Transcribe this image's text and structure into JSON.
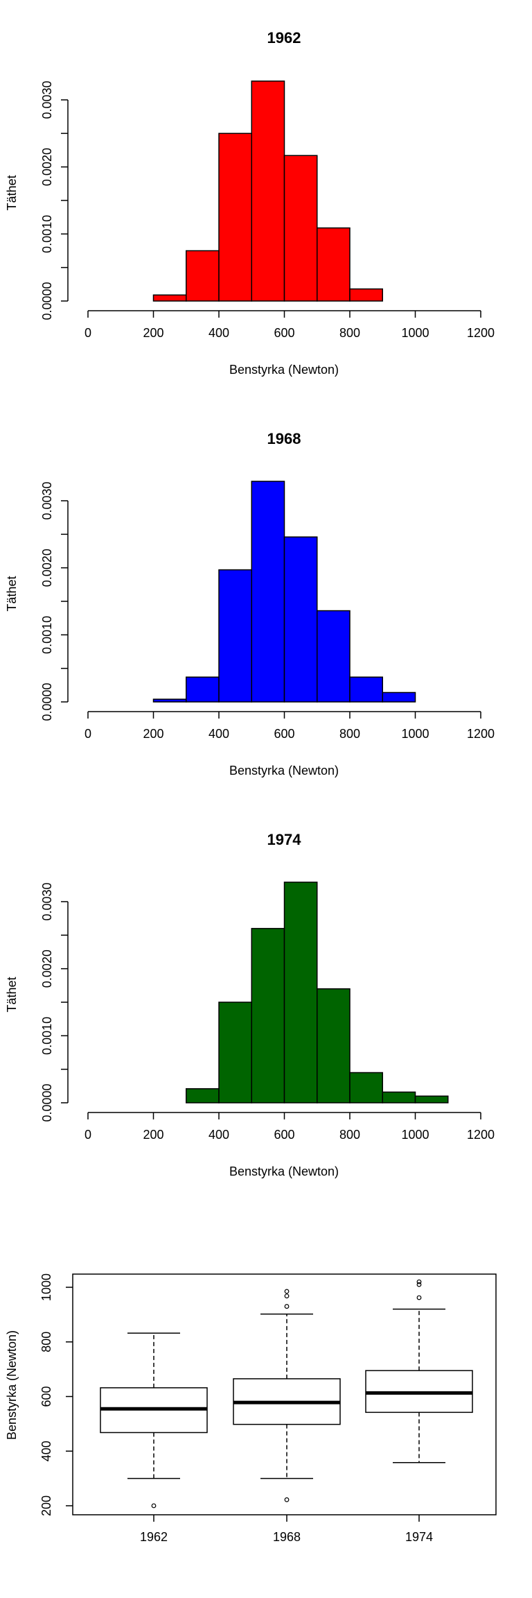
{
  "chart_data": [
    {
      "type": "histogram",
      "title": "1962",
      "xlabel": "Benstyrka (Newton)",
      "ylabel": "Täthet",
      "color": "#ff0000",
      "xlim": [
        0,
        1200
      ],
      "ylim": [
        0,
        0.003
      ],
      "xticks": [
        "0",
        "200",
        "400",
        "600",
        "800",
        "1000",
        "1200"
      ],
      "yticks": [
        "0.0000",
        "0.0010",
        "0.0020",
        "0.0030"
      ],
      "bins": [
        {
          "from": 200,
          "to": 300,
          "density": 9e-05
        },
        {
          "from": 300,
          "to": 400,
          "density": 0.00075
        },
        {
          "from": 400,
          "to": 500,
          "density": 0.0025
        },
        {
          "from": 500,
          "to": 600,
          "density": 0.00328
        },
        {
          "from": 600,
          "to": 700,
          "density": 0.00217
        },
        {
          "from": 700,
          "to": 800,
          "density": 0.00109
        },
        {
          "from": 800,
          "to": 900,
          "density": 0.00018
        }
      ]
    },
    {
      "type": "histogram",
      "title": "1968",
      "xlabel": "Benstyrka (Newton)",
      "ylabel": "Täthet",
      "color": "#0000ff",
      "xlim": [
        0,
        1200
      ],
      "ylim": [
        0,
        0.003
      ],
      "xticks": [
        "0",
        "200",
        "400",
        "600",
        "800",
        "1000",
        "1200"
      ],
      "yticks": [
        "0.0000",
        "0.0010",
        "0.0020",
        "0.0030"
      ],
      "bins": [
        {
          "from": 200,
          "to": 300,
          "density": 4e-05
        },
        {
          "from": 300,
          "to": 400,
          "density": 0.00037
        },
        {
          "from": 400,
          "to": 500,
          "density": 0.00197
        },
        {
          "from": 500,
          "to": 600,
          "density": 0.00329
        },
        {
          "from": 600,
          "to": 700,
          "density": 0.00246
        },
        {
          "from": 700,
          "to": 800,
          "density": 0.00136
        },
        {
          "from": 800,
          "to": 900,
          "density": 0.00037
        },
        {
          "from": 900,
          "to": 1000,
          "density": 0.00014
        }
      ]
    },
    {
      "type": "histogram",
      "title": "1974",
      "xlabel": "Benstyrka (Newton)",
      "ylabel": "Täthet",
      "color": "#006400",
      "xlim": [
        0,
        1200
      ],
      "ylim": [
        0,
        0.003
      ],
      "xticks": [
        "0",
        "200",
        "400",
        "600",
        "800",
        "1000",
        "1200"
      ],
      "yticks": [
        "0.0000",
        "0.0010",
        "0.0020",
        "0.0030"
      ],
      "bins": [
        {
          "from": 300,
          "to": 400,
          "density": 0.00021
        },
        {
          "from": 400,
          "to": 500,
          "density": 0.0015
        },
        {
          "from": 500,
          "to": 600,
          "density": 0.0026
        },
        {
          "from": 600,
          "to": 700,
          "density": 0.00329
        },
        {
          "from": 700,
          "to": 800,
          "density": 0.0017
        },
        {
          "from": 800,
          "to": 900,
          "density": 0.00045
        },
        {
          "from": 900,
          "to": 1000,
          "density": 0.00016
        },
        {
          "from": 1000,
          "to": 1100,
          "density": 0.0001
        }
      ]
    },
    {
      "type": "boxplot",
      "ylabel": "Benstyrka (Newton)",
      "ylim": [
        200,
        1000
      ],
      "yticks": [
        "200",
        "400",
        "600",
        "800",
        "1000"
      ],
      "categories": [
        "1962",
        "1968",
        "1974"
      ],
      "boxes": [
        {
          "name": "1962",
          "min": 300,
          "q1": 468,
          "median": 555,
          "q3": 632,
          "max": 832,
          "outliers": [
            200
          ]
        },
        {
          "name": "1968",
          "min": 300,
          "q1": 498,
          "median": 578,
          "q3": 665,
          "max": 902,
          "outliers": [
            222,
            930,
            968,
            985
          ]
        },
        {
          "name": "1974",
          "min": 358,
          "q1": 542,
          "median": 613,
          "q3": 695,
          "max": 920,
          "outliers": [
            962,
            1010,
            1020
          ]
        }
      ]
    }
  ]
}
